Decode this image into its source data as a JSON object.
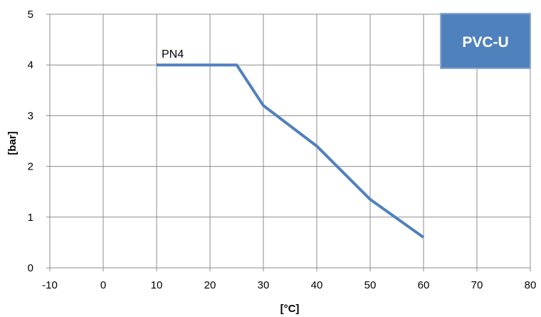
{
  "chart_data": {
    "type": "line",
    "title": "",
    "xlabel": "[°C]",
    "ylabel": "[bar]",
    "xlim": [
      -10,
      80
    ],
    "ylim": [
      0,
      5
    ],
    "xticks": [
      -10,
      0,
      10,
      20,
      30,
      40,
      50,
      60,
      70,
      80
    ],
    "yticks": [
      0,
      1,
      2,
      3,
      4,
      5
    ],
    "grid": true,
    "legend": "none",
    "series": [
      {
        "name": "PN4",
        "color": "#4f81bd",
        "x": [
          10,
          25,
          30,
          40,
          50,
          60
        ],
        "y": [
          4,
          4,
          3.2,
          2.4,
          1.35,
          0.6
        ]
      }
    ],
    "badge": {
      "text": "PVC-U",
      "fill": "#4f81bd",
      "border": "#8ea9cc"
    }
  }
}
